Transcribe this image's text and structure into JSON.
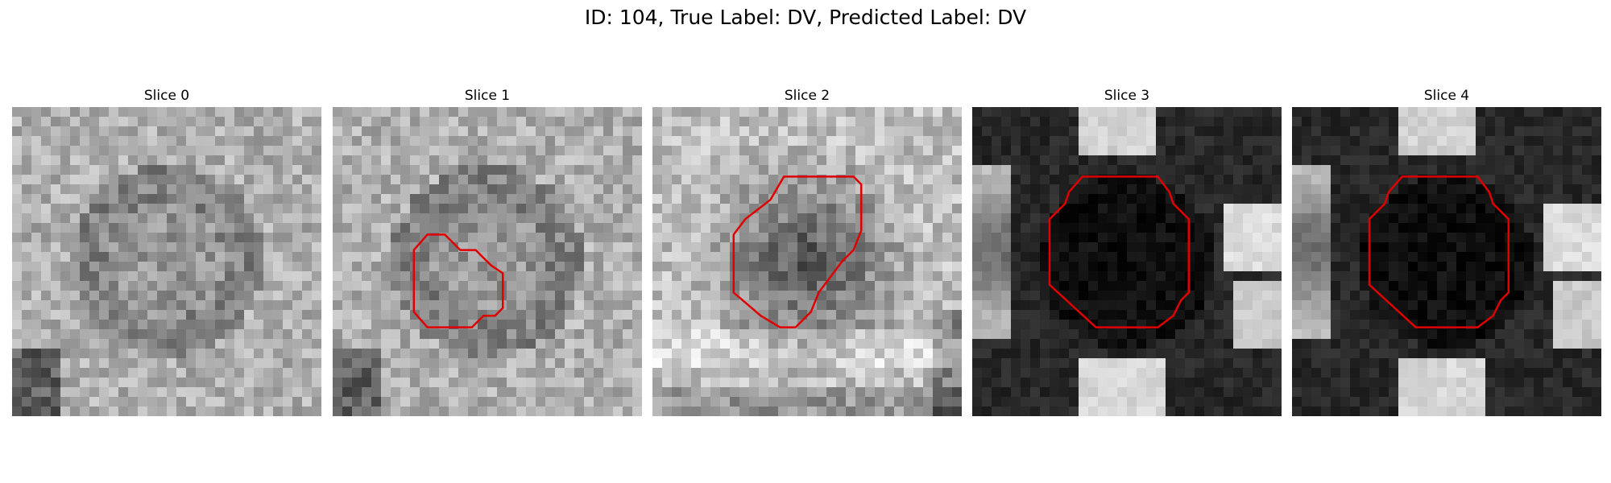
{
  "title": "ID: 104, True Label: DV, Predicted Label: DV",
  "grid_size": 32,
  "contour_color": "#e00000",
  "slices": [
    {
      "label": "Slice 0",
      "style": "grainy-light",
      "seed": 11,
      "contour": null
    },
    {
      "label": "Slice 1",
      "style": "grainy-light",
      "seed": 23,
      "contour": [
        [
          8.4,
          14.8
        ],
        [
          9.8,
          13.2
        ],
        [
          11.6,
          13.2
        ],
        [
          13.2,
          14.8
        ],
        [
          14.8,
          14.8
        ],
        [
          15.6,
          15.6
        ],
        [
          16.4,
          16.4
        ],
        [
          17.6,
          17.2
        ],
        [
          17.6,
          20.8
        ],
        [
          16.8,
          21.6
        ],
        [
          15.6,
          21.6
        ],
        [
          14.4,
          22.8
        ],
        [
          9.8,
          22.8
        ],
        [
          8.4,
          21.2
        ]
      ]
    },
    {
      "label": "Slice 2",
      "style": "grainy-mid",
      "seed": 37,
      "contour": [
        [
          12.2,
          9.6
        ],
        [
          13.6,
          7.2
        ],
        [
          20.8,
          7.2
        ],
        [
          21.6,
          8.0
        ],
        [
          21.6,
          12.8
        ],
        [
          20.8,
          14.8
        ],
        [
          19.6,
          16.0
        ],
        [
          18.4,
          17.6
        ],
        [
          17.2,
          19.2
        ],
        [
          16.4,
          21.2
        ],
        [
          14.8,
          22.8
        ],
        [
          13.2,
          22.8
        ],
        [
          11.2,
          21.6
        ],
        [
          8.4,
          19.2
        ],
        [
          8.4,
          13.2
        ],
        [
          9.6,
          11.6
        ]
      ]
    },
    {
      "label": "Slice 3",
      "style": "smooth-dark",
      "seed": 51,
      "contour": [
        [
          8.0,
          11.6
        ],
        [
          9.6,
          10.0
        ],
        [
          10.0,
          8.8
        ],
        [
          11.4,
          7.2
        ],
        [
          19.2,
          7.2
        ],
        [
          20.4,
          8.8
        ],
        [
          20.8,
          10.0
        ],
        [
          22.4,
          11.6
        ],
        [
          22.4,
          19.2
        ],
        [
          21.6,
          20.0
        ],
        [
          20.8,
          21.6
        ],
        [
          19.2,
          22.8
        ],
        [
          12.8,
          22.8
        ],
        [
          8.0,
          18.4
        ]
      ]
    },
    {
      "label": "Slice 4",
      "style": "smooth-dark",
      "seed": 67,
      "contour": [
        [
          8.0,
          11.6
        ],
        [
          9.6,
          10.0
        ],
        [
          10.0,
          8.8
        ],
        [
          11.4,
          7.2
        ],
        [
          19.2,
          7.2
        ],
        [
          20.4,
          8.8
        ],
        [
          20.8,
          10.0
        ],
        [
          22.4,
          11.6
        ],
        [
          22.4,
          19.2
        ],
        [
          21.6,
          20.0
        ],
        [
          20.8,
          21.6
        ],
        [
          19.2,
          22.8
        ],
        [
          12.8,
          22.8
        ],
        [
          8.0,
          18.4
        ]
      ]
    }
  ]
}
